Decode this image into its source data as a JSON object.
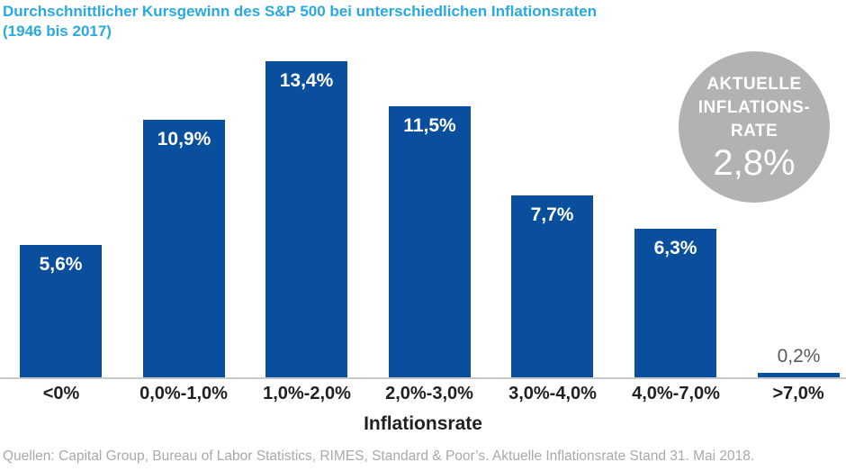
{
  "page": {
    "title_line1": "Durchschnittlicher Kursgewinn des S&P 500 bei unterschiedlichen Inflationsraten",
    "title_line2": "(1946 bis 2017)",
    "source": "Quellen: Capital Group, Bureau of Labor Statistics, RIMES, Standard & Poor’s. Aktuelle Inflationsrate Stand 31. Mai 2018."
  },
  "badge": {
    "line1": "AKTUELLE",
    "line2": "INFLATIONS-",
    "line3": "RATE",
    "value": "2,8%"
  },
  "chart_data": {
    "type": "bar",
    "title": "Durchschnittlicher Kursgewinn des S&P 500 bei unterschiedlichen Inflationsraten (1946 bis 2017)",
    "categories": [
      "<0%",
      "0,0%-1,0%",
      "1,0%-2,0%",
      "2,0%-3,0%",
      "3,0%-4,0%",
      "4,0%-7,0%",
      ">7,0%"
    ],
    "values": [
      5.6,
      10.9,
      13.4,
      11.5,
      7.7,
      6.3,
      0.2
    ],
    "value_labels": [
      "5,6%",
      "10,9%",
      "13,4%",
      "11,5%",
      "7,7%",
      "6,3%",
      "0,2%"
    ],
    "xlabel": "Inflationsrate",
    "ylabel": "",
    "ylim": [
      0,
      13.8
    ],
    "grid": false,
    "legend": false,
    "annotations": [
      "AKTUELLE INFLATIONS-RATE 2,8%"
    ]
  },
  "colors": {
    "bar": "#0A4E9E",
    "title": "#29A9E1",
    "badge": "#B2B2B2",
    "axis_line": "#C8C9CB",
    "tick_label": "#221F20",
    "outside_value_label": "#58595B",
    "source": "#A7A9AC"
  }
}
